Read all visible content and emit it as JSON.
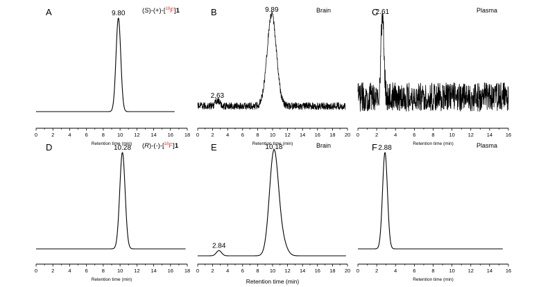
{
  "chart_data": [
    {
      "panel": "A",
      "type": "line",
      "compound_label": {
        "prefix": "(",
        "stereo": "S",
        "mid": ")-(+)-[",
        "mass": "18",
        "element": "F",
        "close": "]",
        "number": "1"
      },
      "xlabel": "Retention time (min)",
      "xlim": [
        0,
        18
      ],
      "xticks": [
        0,
        2,
        4,
        6,
        8,
        10,
        12,
        14,
        16,
        18
      ],
      "x_range": [
        0,
        16.5
      ],
      "peaks": [
        {
          "x": 9.8,
          "height": 1.0,
          "width": 0.28,
          "label": "9.80"
        }
      ],
      "noise": 0,
      "baseline": 0
    },
    {
      "panel": "B",
      "type": "line",
      "annotation": "Brain",
      "xlabel": "Retention time (min)",
      "xlim": [
        0,
        20
      ],
      "xticks": [
        0,
        2,
        4,
        6,
        8,
        10,
        12,
        14,
        16,
        18,
        20
      ],
      "x_range": [
        0,
        19.7
      ],
      "peaks": [
        {
          "x": 2.63,
          "height": 0.06,
          "width": 0.3,
          "label": "2.63"
        },
        {
          "x": 9.89,
          "height": 1.0,
          "width": 0.62,
          "label": "9.89"
        }
      ],
      "noise": 0.04,
      "baseline": 0.05
    },
    {
      "panel": "C",
      "type": "line",
      "annotation": "Plasma",
      "xlabel": "Retention time (min)",
      "xlim": [
        0,
        16
      ],
      "xticks": [
        0,
        2,
        4,
        6,
        8,
        10,
        12,
        14,
        16
      ],
      "x_range": [
        0,
        16
      ],
      "peaks": [
        {
          "x": 2.61,
          "height": 1.0,
          "width": 0.16,
          "label": "2.61"
        }
      ],
      "noise": 0.18,
      "baseline": 0.2
    },
    {
      "panel": "D",
      "type": "line",
      "compound_label": {
        "prefix": "(",
        "stereo": "R",
        "mid": ")-(-)-[",
        "mass": "18",
        "element": "F",
        "close": "]",
        "number": "1"
      },
      "xlabel": "Retention time (min)",
      "xlim": [
        0,
        18
      ],
      "xticks": [
        0,
        2,
        4,
        6,
        8,
        10,
        12,
        14,
        16,
        18
      ],
      "x_range": [
        0,
        17.8
      ],
      "peaks": [
        {
          "x": 10.28,
          "height": 1.0,
          "width": 0.32,
          "label": "10.28"
        }
      ],
      "noise": 0,
      "baseline": 0
    },
    {
      "panel": "E",
      "type": "line",
      "annotation": "Brain",
      "xlabel": "Retention time (min)",
      "xlim": [
        0,
        20
      ],
      "xticks": [
        0,
        2,
        4,
        6,
        8,
        10,
        12,
        14,
        16,
        18,
        20
      ],
      "x_range": [
        0,
        19.8
      ],
      "peaks": [
        {
          "x": 2.84,
          "height": 0.05,
          "width": 0.35,
          "label": "2.84"
        },
        {
          "x": 10.18,
          "height": 1.0,
          "width": 0.6,
          "label": "10.18"
        },
        {
          "x": 11.3,
          "height": 0.12,
          "width": 0.6,
          "label": ""
        }
      ],
      "noise": 0,
      "baseline": 0.01
    },
    {
      "panel": "F",
      "type": "line",
      "annotation": "Plasma",
      "xlabel": "Retention time (min)",
      "xlim": [
        0,
        16
      ],
      "xticks": [
        0,
        2,
        4,
        6,
        8,
        10,
        12,
        14,
        16
      ],
      "x_range": [
        0,
        15.4
      ],
      "peaks": [
        {
          "x": 2.88,
          "height": 1.0,
          "width": 0.26,
          "label": "2.88"
        }
      ],
      "noise": 0,
      "baseline": 0
    }
  ]
}
